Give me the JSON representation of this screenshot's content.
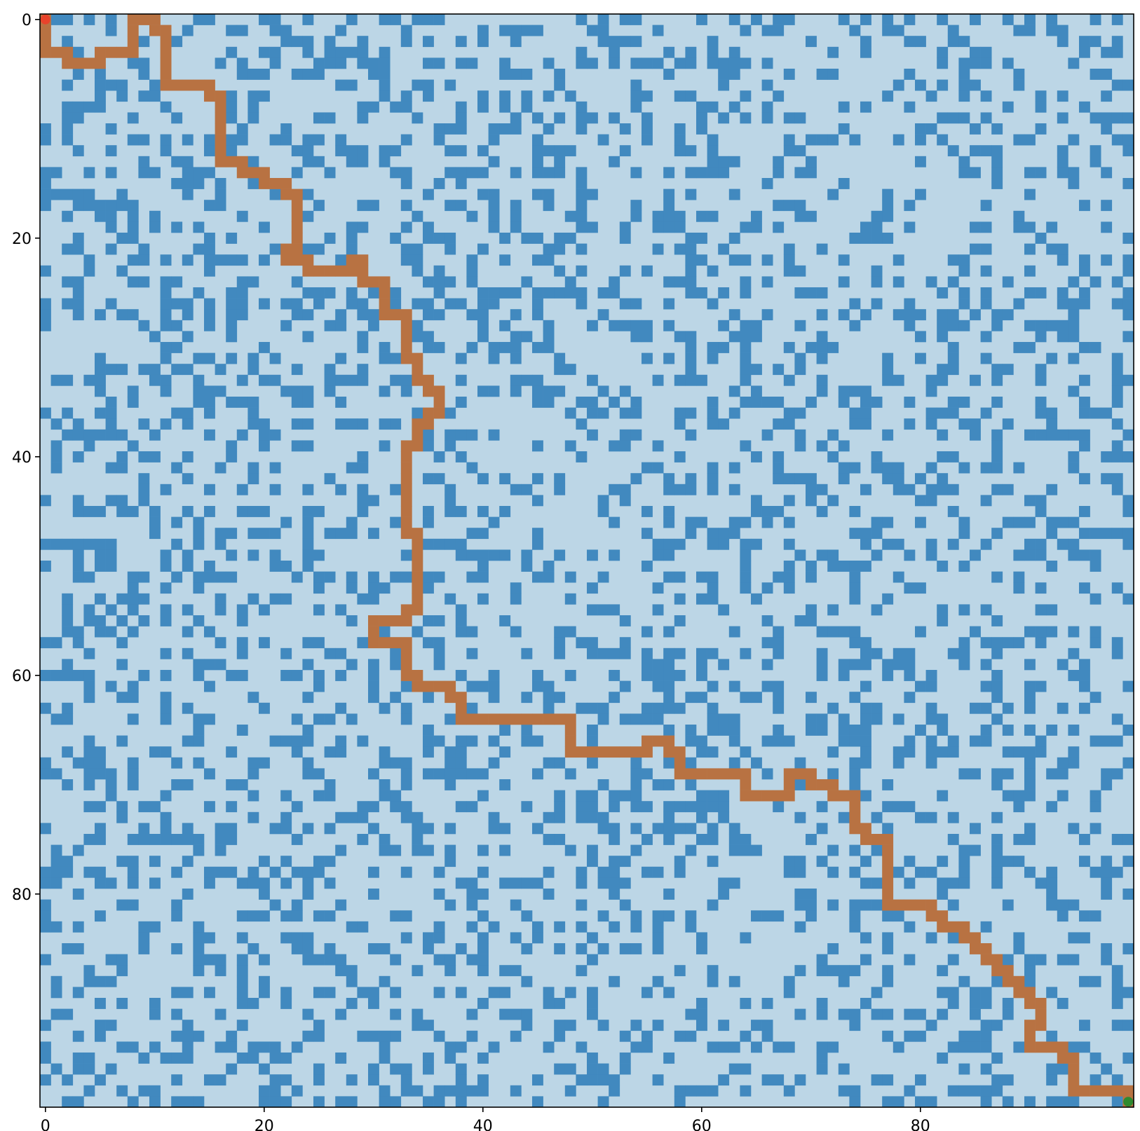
{
  "chart_data": {
    "type": "heatmap",
    "title": "",
    "xlabel": "",
    "ylabel": "",
    "grid_size": [
      100,
      100
    ],
    "xlim": [
      -0.5,
      99.5
    ],
    "ylim": [
      99.5,
      -0.5
    ],
    "grid": false,
    "x_ticks": [
      0,
      20,
      40,
      60,
      80
    ],
    "y_ticks": [
      0,
      20,
      40,
      60,
      80
    ],
    "x_tick_labels": [
      "0",
      "20",
      "40",
      "60",
      "80"
    ],
    "y_tick_labels": [
      "0",
      "20",
      "40",
      "60",
      "80"
    ],
    "obstacle_density": 0.3,
    "colors": {
      "free": "#bcd6e6",
      "obstacle": "#4189bf",
      "path": "#b87242",
      "start": "#e8432b",
      "goal": "#2f8a2f",
      "axis": "#000000"
    },
    "start": [
      0,
      0
    ],
    "goal": [
      99,
      99
    ],
    "path": [
      [
        0,
        0
      ],
      [
        0,
        1
      ],
      [
        0,
        2
      ],
      [
        0,
        3
      ],
      [
        1,
        3
      ],
      [
        2,
        3
      ],
      [
        2,
        4
      ],
      [
        3,
        4
      ],
      [
        4,
        4
      ],
      [
        5,
        4
      ],
      [
        5,
        3
      ],
      [
        6,
        3
      ],
      [
        7,
        3
      ],
      [
        8,
        3
      ],
      [
        8,
        2
      ],
      [
        8,
        1
      ],
      [
        8,
        0
      ],
      [
        9,
        0
      ],
      [
        10,
        0
      ],
      [
        10,
        1
      ],
      [
        11,
        1
      ],
      [
        11,
        2
      ],
      [
        11,
        3
      ],
      [
        11,
        4
      ],
      [
        11,
        5
      ],
      [
        11,
        6
      ],
      [
        12,
        6
      ],
      [
        13,
        6
      ],
      [
        14,
        6
      ],
      [
        15,
        6
      ],
      [
        15,
        7
      ],
      [
        16,
        7
      ],
      [
        16,
        8
      ],
      [
        16,
        9
      ],
      [
        16,
        10
      ],
      [
        16,
        11
      ],
      [
        16,
        12
      ],
      [
        16,
        13
      ],
      [
        17,
        13
      ],
      [
        18,
        13
      ],
      [
        18,
        14
      ],
      [
        19,
        14
      ],
      [
        20,
        14
      ],
      [
        20,
        15
      ],
      [
        21,
        15
      ],
      [
        22,
        15
      ],
      [
        22,
        16
      ],
      [
        23,
        16
      ],
      [
        23,
        17
      ],
      [
        23,
        18
      ],
      [
        23,
        19
      ],
      [
        23,
        20
      ],
      [
        23,
        21
      ],
      [
        22,
        21
      ],
      [
        22,
        22
      ],
      [
        23,
        22
      ],
      [
        24,
        22
      ],
      [
        24,
        23
      ],
      [
        25,
        23
      ],
      [
        26,
        23
      ],
      [
        27,
        23
      ],
      [
        28,
        23
      ],
      [
        28,
        22
      ],
      [
        29,
        22
      ],
      [
        29,
        23
      ],
      [
        29,
        24
      ],
      [
        30,
        24
      ],
      [
        31,
        24
      ],
      [
        31,
        25
      ],
      [
        31,
        26
      ],
      [
        31,
        27
      ],
      [
        32,
        27
      ],
      [
        33,
        27
      ],
      [
        33,
        28
      ],
      [
        33,
        29
      ],
      [
        33,
        30
      ],
      [
        33,
        31
      ],
      [
        34,
        31
      ],
      [
        34,
        32
      ],
      [
        34,
        33
      ],
      [
        35,
        33
      ],
      [
        35,
        34
      ],
      [
        36,
        34
      ],
      [
        36,
        35
      ],
      [
        36,
        36
      ],
      [
        35,
        36
      ],
      [
        35,
        37
      ],
      [
        34,
        37
      ],
      [
        34,
        38
      ],
      [
        34,
        39
      ],
      [
        33,
        39
      ],
      [
        33,
        40
      ],
      [
        33,
        41
      ],
      [
        33,
        42
      ],
      [
        33,
        43
      ],
      [
        33,
        44
      ],
      [
        33,
        45
      ],
      [
        33,
        46
      ],
      [
        33,
        47
      ],
      [
        34,
        47
      ],
      [
        34,
        48
      ],
      [
        34,
        49
      ],
      [
        34,
        50
      ],
      [
        34,
        51
      ],
      [
        34,
        52
      ],
      [
        34,
        53
      ],
      [
        34,
        54
      ],
      [
        33,
        54
      ],
      [
        33,
        55
      ],
      [
        32,
        55
      ],
      [
        31,
        55
      ],
      [
        30,
        55
      ],
      [
        30,
        56
      ],
      [
        30,
        57
      ],
      [
        31,
        57
      ],
      [
        32,
        57
      ],
      [
        33,
        57
      ],
      [
        33,
        58
      ],
      [
        33,
        59
      ],
      [
        33,
        60
      ],
      [
        34,
        60
      ],
      [
        34,
        61
      ],
      [
        35,
        61
      ],
      [
        36,
        61
      ],
      [
        37,
        61
      ],
      [
        37,
        62
      ],
      [
        38,
        62
      ],
      [
        38,
        63
      ],
      [
        38,
        64
      ],
      [
        39,
        64
      ],
      [
        40,
        64
      ],
      [
        41,
        64
      ],
      [
        42,
        64
      ],
      [
        43,
        64
      ],
      [
        44,
        64
      ],
      [
        45,
        64
      ],
      [
        46,
        64
      ],
      [
        47,
        64
      ],
      [
        48,
        64
      ],
      [
        48,
        65
      ],
      [
        48,
        66
      ],
      [
        48,
        67
      ],
      [
        49,
        67
      ],
      [
        50,
        67
      ],
      [
        51,
        67
      ],
      [
        52,
        67
      ],
      [
        53,
        67
      ],
      [
        54,
        67
      ],
      [
        55,
        67
      ],
      [
        55,
        66
      ],
      [
        56,
        66
      ],
      [
        57,
        66
      ],
      [
        57,
        67
      ],
      [
        58,
        67
      ],
      [
        58,
        68
      ],
      [
        58,
        69
      ],
      [
        59,
        69
      ],
      [
        60,
        69
      ],
      [
        61,
        69
      ],
      [
        62,
        69
      ],
      [
        63,
        69
      ],
      [
        64,
        69
      ],
      [
        64,
        70
      ],
      [
        64,
        71
      ],
      [
        65,
        71
      ],
      [
        66,
        71
      ],
      [
        67,
        71
      ],
      [
        68,
        71
      ],
      [
        68,
        70
      ],
      [
        68,
        69
      ],
      [
        69,
        69
      ],
      [
        70,
        69
      ],
      [
        70,
        70
      ],
      [
        71,
        70
      ],
      [
        72,
        70
      ],
      [
        72,
        71
      ],
      [
        73,
        71
      ],
      [
        74,
        71
      ],
      [
        74,
        72
      ],
      [
        74,
        73
      ],
      [
        74,
        74
      ],
      [
        75,
        74
      ],
      [
        75,
        75
      ],
      [
        76,
        75
      ],
      [
        77,
        75
      ],
      [
        77,
        76
      ],
      [
        77,
        77
      ],
      [
        77,
        78
      ],
      [
        77,
        79
      ],
      [
        77,
        80
      ],
      [
        77,
        81
      ],
      [
        78,
        81
      ],
      [
        79,
        81
      ],
      [
        80,
        81
      ],
      [
        81,
        81
      ],
      [
        81,
        82
      ],
      [
        82,
        82
      ],
      [
        82,
        83
      ],
      [
        83,
        83
      ],
      [
        84,
        83
      ],
      [
        84,
        84
      ],
      [
        85,
        84
      ],
      [
        85,
        85
      ],
      [
        86,
        85
      ],
      [
        86,
        86
      ],
      [
        87,
        86
      ],
      [
        87,
        87
      ],
      [
        88,
        87
      ],
      [
        88,
        88
      ],
      [
        89,
        88
      ],
      [
        89,
        89
      ],
      [
        90,
        89
      ],
      [
        90,
        90
      ],
      [
        91,
        90
      ],
      [
        91,
        91
      ],
      [
        91,
        92
      ],
      [
        90,
        92
      ],
      [
        90,
        93
      ],
      [
        90,
        94
      ],
      [
        91,
        94
      ],
      [
        92,
        94
      ],
      [
        93,
        94
      ],
      [
        93,
        95
      ],
      [
        94,
        95
      ],
      [
        94,
        96
      ],
      [
        94,
        97
      ],
      [
        94,
        98
      ],
      [
        95,
        98
      ],
      [
        96,
        98
      ],
      [
        97,
        98
      ],
      [
        98,
        98
      ],
      [
        99,
        98
      ],
      [
        99,
        99
      ]
    ]
  }
}
